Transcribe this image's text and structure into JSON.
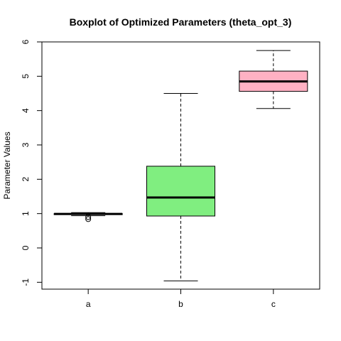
{
  "chart_data": {
    "type": "boxplot",
    "title": "Boxplot of Optimized Parameters (theta_opt_3)",
    "xlabel": "",
    "ylabel": "Parameter Values",
    "ylim": [
      -1.2,
      6.0
    ],
    "yticks": [
      -1,
      0,
      1,
      2,
      3,
      4,
      5,
      6
    ],
    "categories": [
      "a",
      "b",
      "c"
    ],
    "boxes": [
      {
        "category": "a",
        "min": 0.94,
        "q1": 0.97,
        "median": 0.99,
        "q3": 1.0,
        "max": 1.03,
        "outliers": [
          0.84,
          0.9
        ],
        "color": "#ffffff"
      },
      {
        "category": "b",
        "min": -0.96,
        "q1": 0.93,
        "median": 1.47,
        "q3": 2.38,
        "max": 4.5,
        "outliers": [],
        "color": "#80ee80"
      },
      {
        "category": "c",
        "min": 4.06,
        "q1": 4.56,
        "median": 4.85,
        "q3": 5.15,
        "max": 5.75,
        "outliers": [],
        "color": "#ffb1c3"
      }
    ],
    "grid": false
  }
}
